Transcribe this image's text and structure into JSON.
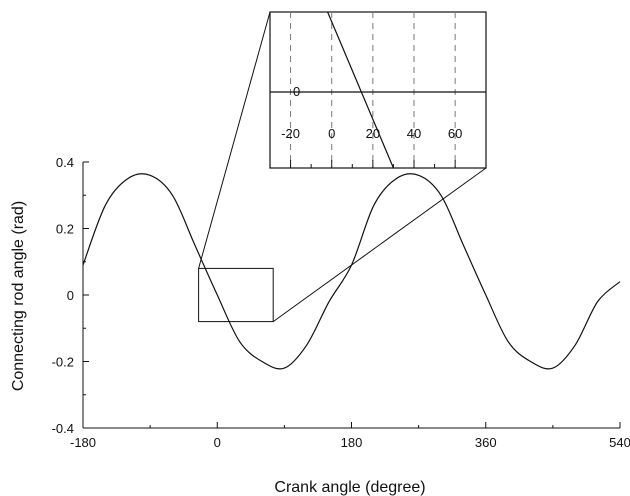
{
  "chart_data": {
    "type": "line",
    "xlabel": "Crank angle (degree)",
    "ylabel": "Connecting rod angle (rad)",
    "xlim": [
      -180,
      540
    ],
    "ylim": [
      -0.4,
      0.4
    ],
    "x_ticks": [
      -180,
      0,
      180,
      360,
      540
    ],
    "x_tick_labels": [
      "-180",
      "0",
      "180",
      "360",
      "540"
    ],
    "y_ticks": [
      -0.4,
      -0.2,
      0,
      0.2,
      0.4
    ],
    "y_tick_labels": [
      "-0.4",
      "-0.2",
      "0",
      "0.2",
      "0.4"
    ],
    "grid": false,
    "series": [
      {
        "x": [
          -180,
          -150,
          -120,
          -90,
          -60,
          -30,
          0,
          30,
          60,
          90,
          120,
          150,
          180,
          210,
          240,
          270,
          300,
          330,
          360,
          390,
          420,
          450,
          480,
          510,
          540
        ],
        "y": [
          0.09,
          0.27,
          0.35,
          0.36,
          0.3,
          0.15,
          0.0,
          -0.14,
          -0.2,
          -0.22,
          -0.15,
          -0.02,
          0.09,
          0.27,
          0.35,
          0.36,
          0.3,
          0.15,
          0.0,
          -0.14,
          -0.2,
          -0.22,
          -0.15,
          -0.02,
          0.04
        ]
      }
    ],
    "zoom_box": {
      "x": [
        -25,
        75
      ],
      "y": [
        -0.08,
        0.08
      ]
    },
    "inset": {
      "x_ticks": [
        -20,
        0,
        20,
        40,
        60
      ],
      "x_tick_labels": [
        "-20",
        "0",
        "20",
        "40",
        "60"
      ],
      "y_tick_labels": [
        "0"
      ],
      "xlim": [
        -30,
        75
      ],
      "grid": "dashed vertical",
      "line": {
        "x": [
          -2,
          30
        ],
        "y_at_left_edge": 0.08,
        "zero_crossing": 15
      }
    }
  }
}
